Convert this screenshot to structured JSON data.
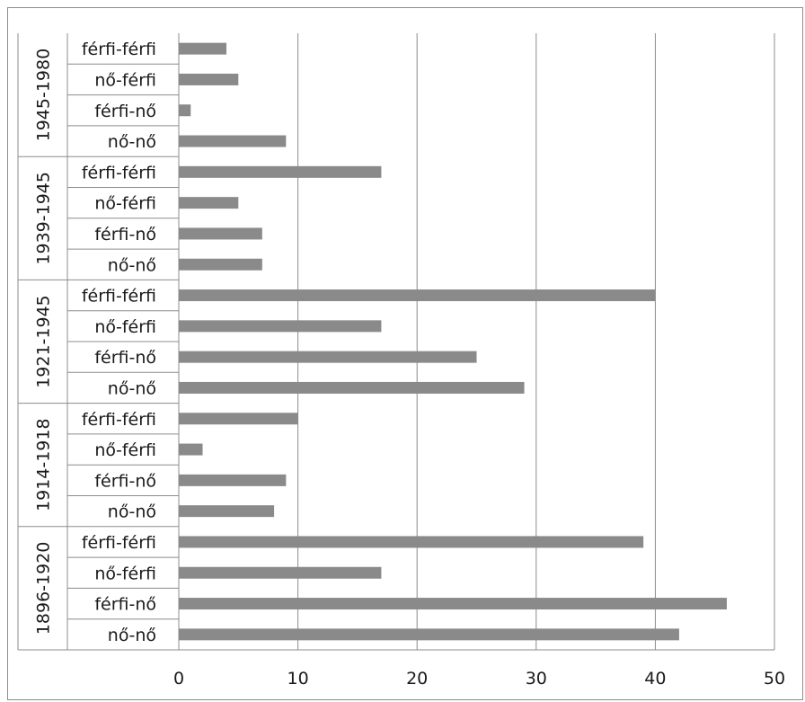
{
  "chart_data": {
    "type": "bar",
    "orientation": "horizontal",
    "xlim": [
      0,
      50
    ],
    "xticks": [
      0,
      10,
      20,
      30,
      40,
      50
    ],
    "grid": "vertical",
    "bar_color": "#8a8a8a",
    "groups": [
      {
        "label": "1945-1980",
        "categories": [
          "férfi-férfi",
          "nő-férfi",
          "férfi-nő",
          "nő-nő"
        ],
        "values": [
          4,
          5,
          1,
          9
        ]
      },
      {
        "label": "1939-1945",
        "categories": [
          "férfi-férfi",
          "nő-férfi",
          "férfi-nő",
          "nő-nő"
        ],
        "values": [
          17,
          5,
          7,
          7
        ]
      },
      {
        "label": "1921-1945",
        "categories": [
          "férfi-férfi",
          "nő-férfi",
          "férfi-nő",
          "nő-nő"
        ],
        "values": [
          40,
          17,
          25,
          29
        ]
      },
      {
        "label": "1914-1918",
        "categories": [
          "férfi-férfi",
          "nő-férfi",
          "férfi-nő",
          "nő-nő"
        ],
        "values": [
          10,
          2,
          9,
          8
        ]
      },
      {
        "label": "1896-1920",
        "categories": [
          "férfi-férfi",
          "nő-férfi",
          "férfi-nő",
          "nő-nő"
        ],
        "values": [
          39,
          17,
          46,
          42
        ]
      }
    ]
  }
}
